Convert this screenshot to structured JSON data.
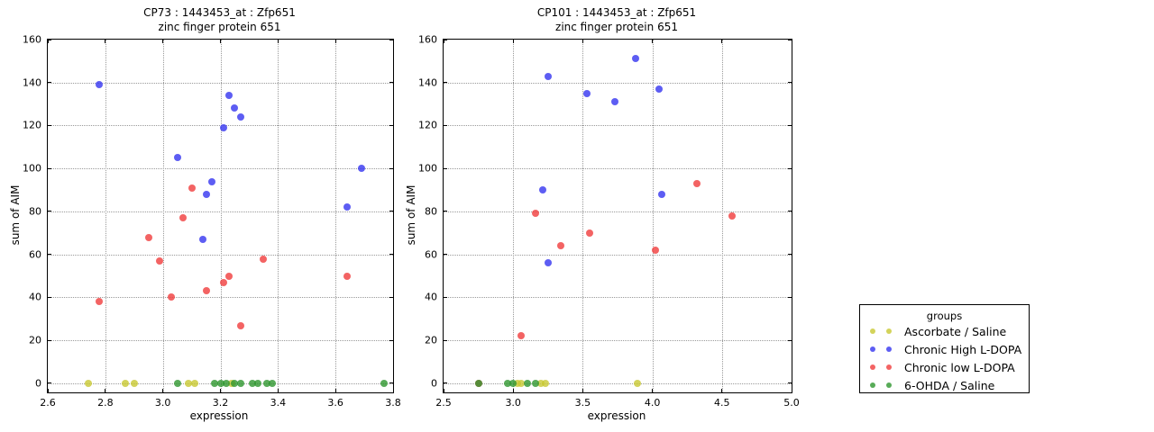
{
  "figure": {
    "background": "#ffffff"
  },
  "legend": {
    "title": "groups",
    "items": [
      {
        "label": "Ascorbate / Saline",
        "color": "#c8c832"
      },
      {
        "label": "Chronic High L-DOPA",
        "color": "#3434f0"
      },
      {
        "label": "Chronic low L-DOPA",
        "color": "#f03c3c"
      },
      {
        "label": "6-OHDA / Saline",
        "color": "#2e962e"
      }
    ]
  },
  "chart_data": [
    {
      "type": "scatter",
      "title": "CP73 : 1443453_at : Zfp651",
      "subtitle": "zinc finger protein 651",
      "xlabel": "expression",
      "ylabel": "sum of AIM",
      "xlim": [
        2.6,
        3.8
      ],
      "ylim": [
        -4.2,
        160
      ],
      "grid": true,
      "xticks": {
        "values": [
          2.6,
          2.8,
          3.0,
          3.2,
          3.4,
          3.6,
          3.8
        ],
        "labels": [
          "2.6",
          "2.8",
          "3.0",
          "3.2",
          "3.4",
          "3.6",
          "3.8"
        ]
      },
      "yticks": {
        "values": [
          0,
          20,
          40,
          60,
          80,
          100,
          120,
          140,
          160
        ],
        "labels": [
          "0",
          "20",
          "40",
          "60",
          "80",
          "100",
          "120",
          "140",
          "160"
        ]
      },
      "series": [
        {
          "name": "Ascorbate / Saline",
          "color": "#c8c832",
          "points": [
            [
              2.74,
              0
            ],
            [
              2.87,
              0
            ],
            [
              2.9,
              0
            ],
            [
              3.09,
              0
            ],
            [
              3.11,
              0
            ],
            [
              3.24,
              0
            ]
          ]
        },
        {
          "name": "Chronic High L-DOPA",
          "color": "#3434f0",
          "points": [
            [
              2.78,
              139
            ],
            [
              3.05,
              105
            ],
            [
              3.14,
              67
            ],
            [
              3.15,
              88
            ],
            [
              3.17,
              94
            ],
            [
              3.21,
              119
            ],
            [
              3.23,
              134
            ],
            [
              3.25,
              128
            ],
            [
              3.27,
              124
            ],
            [
              3.64,
              82
            ],
            [
              3.69,
              100
            ]
          ]
        },
        {
          "name": "Chronic low L-DOPA",
          "color": "#f03c3c",
          "points": [
            [
              2.78,
              38
            ],
            [
              2.95,
              68
            ],
            [
              2.99,
              57
            ],
            [
              3.03,
              40
            ],
            [
              3.07,
              77
            ],
            [
              3.1,
              91
            ],
            [
              3.15,
              43
            ],
            [
              3.21,
              47
            ],
            [
              3.23,
              50
            ],
            [
              3.27,
              27
            ],
            [
              3.35,
              58
            ],
            [
              3.64,
              50
            ]
          ]
        },
        {
          "name": "6-OHDA / Saline",
          "color": "#2e962e",
          "points": [
            [
              3.05,
              0
            ],
            [
              3.18,
              0
            ],
            [
              3.2,
              0
            ],
            [
              3.22,
              0
            ],
            [
              3.25,
              0
            ],
            [
              3.27,
              0
            ],
            [
              3.31,
              0
            ],
            [
              3.33,
              0
            ],
            [
              3.36,
              0
            ],
            [
              3.38,
              0
            ],
            [
              3.77,
              0
            ]
          ]
        }
      ]
    },
    {
      "type": "scatter",
      "title": "CP101 : 1443453_at : Zfp651",
      "subtitle": "zinc finger protein 651",
      "xlabel": "expression",
      "ylabel": "sum of AIM",
      "xlim": [
        2.5,
        5.0
      ],
      "ylim": [
        -4.2,
        160
      ],
      "grid": true,
      "xticks": {
        "values": [
          2.5,
          3.0,
          3.5,
          4.0,
          4.5,
          5.0
        ],
        "labels": [
          "2.5",
          "3.0",
          "3.5",
          "4.0",
          "4.5",
          "5.0"
        ]
      },
      "yticks": {
        "values": [
          0,
          20,
          40,
          60,
          80,
          100,
          120,
          140,
          160
        ],
        "labels": [
          "0",
          "20",
          "40",
          "60",
          "80",
          "100",
          "120",
          "140",
          "160"
        ]
      },
      "series": [
        {
          "name": "Ascorbate / Saline",
          "color": "#c8c832",
          "points": [
            [
              3.03,
              0
            ],
            [
              3.06,
              0
            ],
            [
              3.2,
              0
            ],
            [
              3.23,
              0
            ],
            [
              3.89,
              0
            ]
          ]
        },
        {
          "name": "Chronic High L-DOPA",
          "color": "#3434f0",
          "points": [
            [
              3.21,
              90
            ],
            [
              3.25,
              143
            ],
            [
              3.25,
              56
            ],
            [
              3.53,
              135
            ],
            [
              3.73,
              131
            ],
            [
              3.88,
              151
            ],
            [
              4.05,
              137
            ],
            [
              4.07,
              88
            ]
          ]
        },
        {
          "name": "Chronic low L-DOPA",
          "color": "#f03c3c",
          "points": [
            [
              2.75,
              0
            ],
            [
              3.06,
              22
            ],
            [
              3.16,
              79
            ],
            [
              3.34,
              64
            ],
            [
              3.55,
              70
            ],
            [
              4.02,
              62
            ],
            [
              4.32,
              93
            ],
            [
              4.57,
              78
            ]
          ]
        },
        {
          "name": "6-OHDA / Saline",
          "color": "#2e962e",
          "points": [
            [
              2.75,
              0
            ],
            [
              2.96,
              0
            ],
            [
              3.0,
              0
            ],
            [
              3.1,
              0
            ],
            [
              3.16,
              0
            ]
          ]
        }
      ]
    }
  ]
}
